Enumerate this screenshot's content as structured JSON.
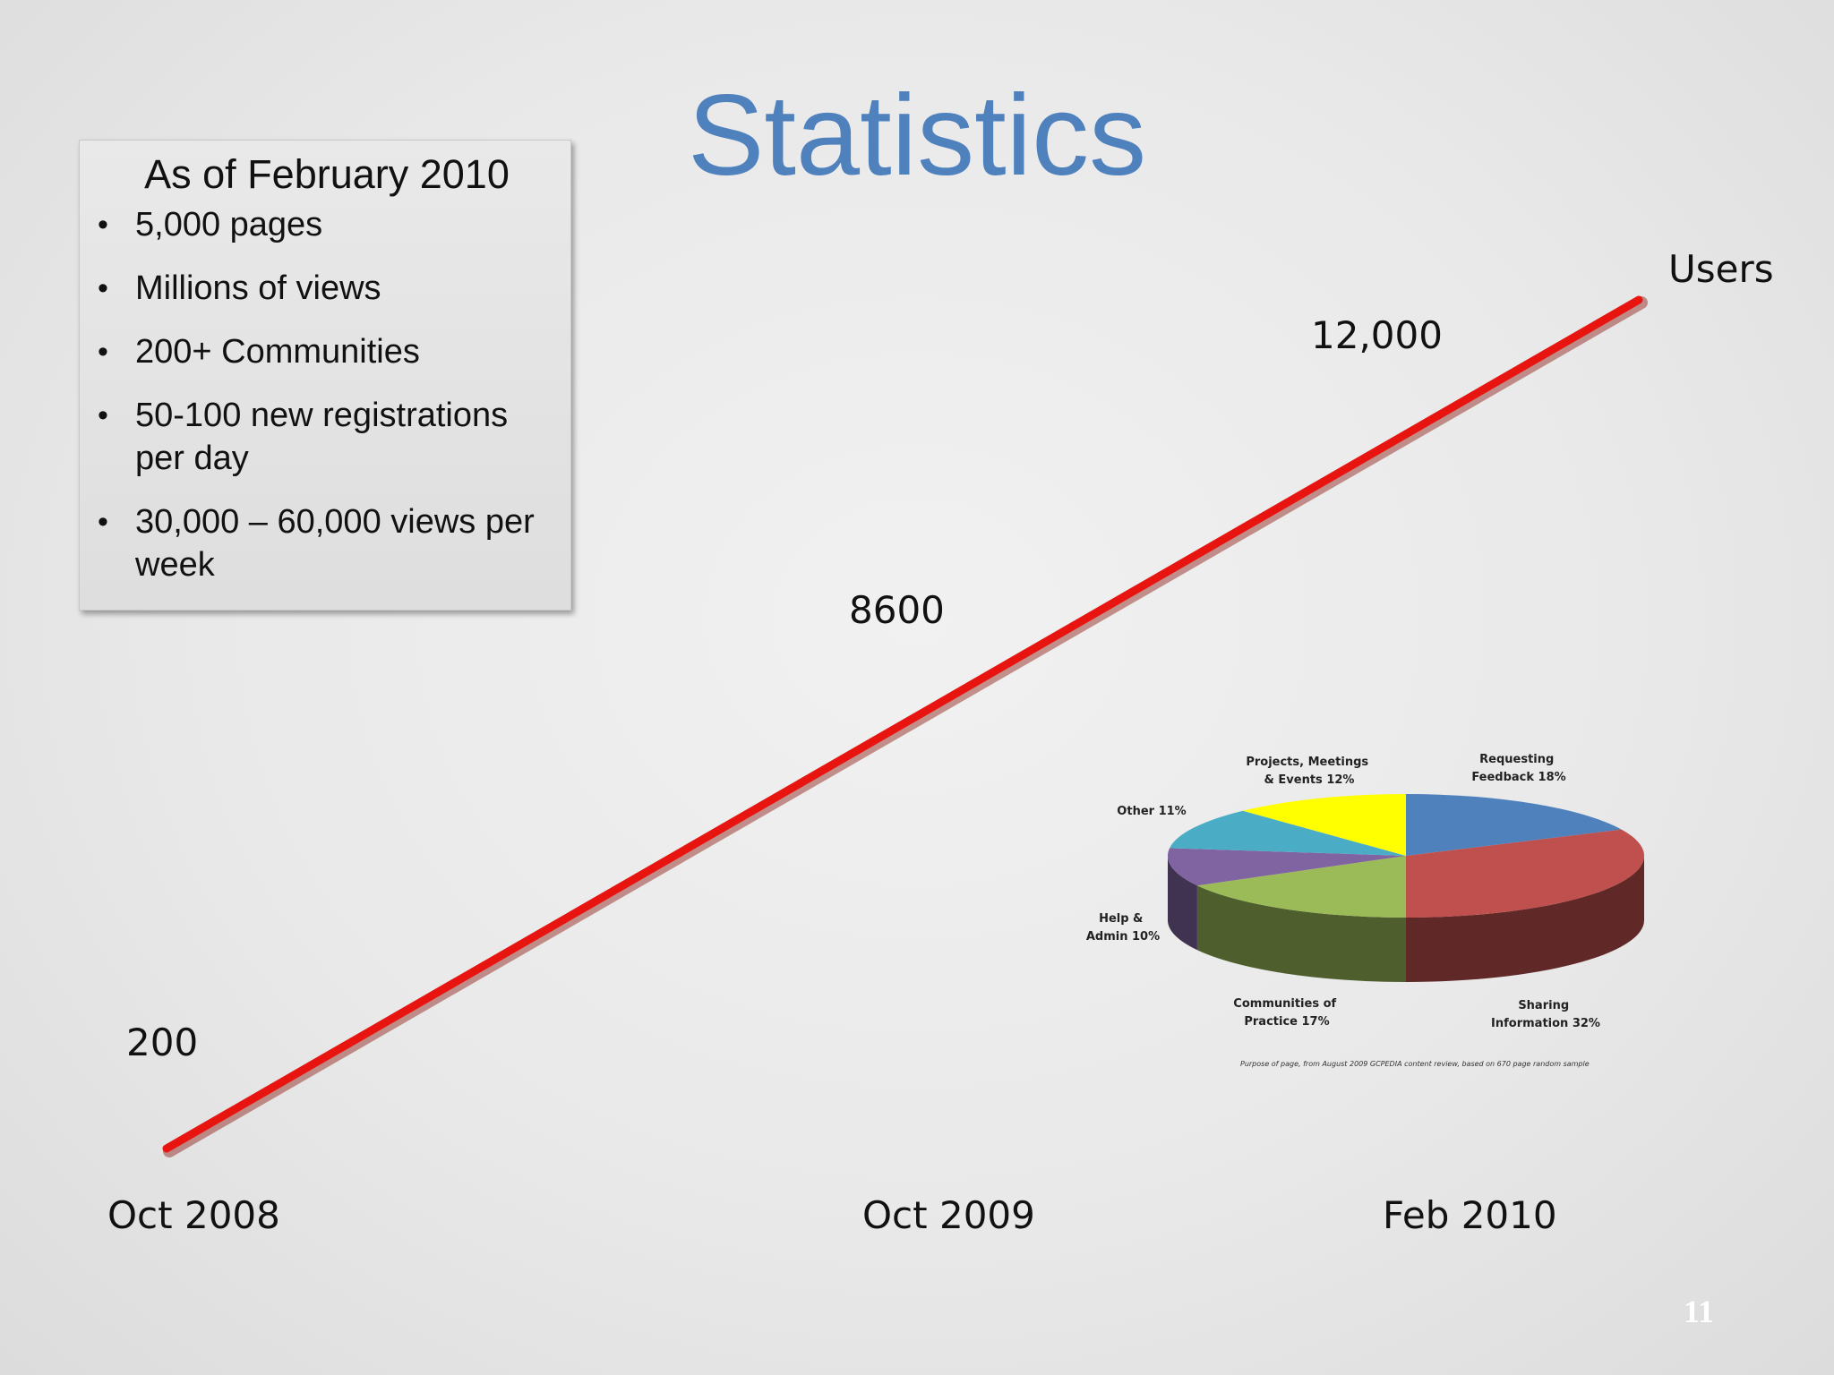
{
  "slide": {
    "title": "Statistics",
    "slide_number": "11"
  },
  "stats_box": {
    "heading": "As of February 2010",
    "items": [
      "5,000 pages",
      "Millions of views",
      "200+ Communities",
      "50-100 new registrations per day",
      "30,000 – 60,000 views per week"
    ]
  },
  "colors": {
    "title": "#4f81bd",
    "line": "#e8140f"
  },
  "chart_data": [
    {
      "type": "line",
      "series": [
        {
          "name": "Users",
          "x": [
            "Oct 2008",
            "Oct 2009",
            "Feb 2010"
          ],
          "values": [
            200,
            8600,
            12000
          ],
          "value_labels": [
            "200",
            "8600",
            "12,000"
          ]
        }
      ],
      "x_tick_labels": [
        "Oct 2008",
        "Oct 2009",
        "Feb 2010"
      ],
      "grid": false,
      "legend": "none"
    },
    {
      "type": "pie",
      "caption": "Purpose of page, from August 2009 GCPEDIA content review, based on 670 page random sample",
      "slices": [
        {
          "label": "Requesting Feedback",
          "value": 18,
          "label_text": "Requesting Feedback 18%",
          "color": "#4f81bd"
        },
        {
          "label": "Sharing Information",
          "value": 32,
          "label_text": "Sharing Information 32%",
          "color": "#c0504d"
        },
        {
          "label": "Communities of Practice",
          "value": 17,
          "label_text": "Communities of Practice 17%",
          "color": "#9bbb59"
        },
        {
          "label": "Help & Admin",
          "value": 10,
          "label_text": "Help & Admin 10%",
          "color": "#8064a2"
        },
        {
          "label": "Other",
          "value": 11,
          "label_text": "Other 11%",
          "color": "#4bacc6"
        },
        {
          "label": "Projects, Meetings & Events",
          "value": 12,
          "label_text": "Projects, Meetings & Events 12%",
          "color": "#ffff00"
        }
      ],
      "label_lines": {
        "requesting": [
          "Requesting",
          "Feedback 18%"
        ],
        "sharing": [
          "Sharing",
          "Information 32%"
        ],
        "communities": [
          "Communities of",
          "Practice 17%"
        ],
        "help": [
          "Help &",
          "Admin 10%"
        ],
        "other": [
          "Other 11%"
        ],
        "projects": [
          "Projects, Meetings",
          "& Events 12%"
        ]
      }
    }
  ]
}
